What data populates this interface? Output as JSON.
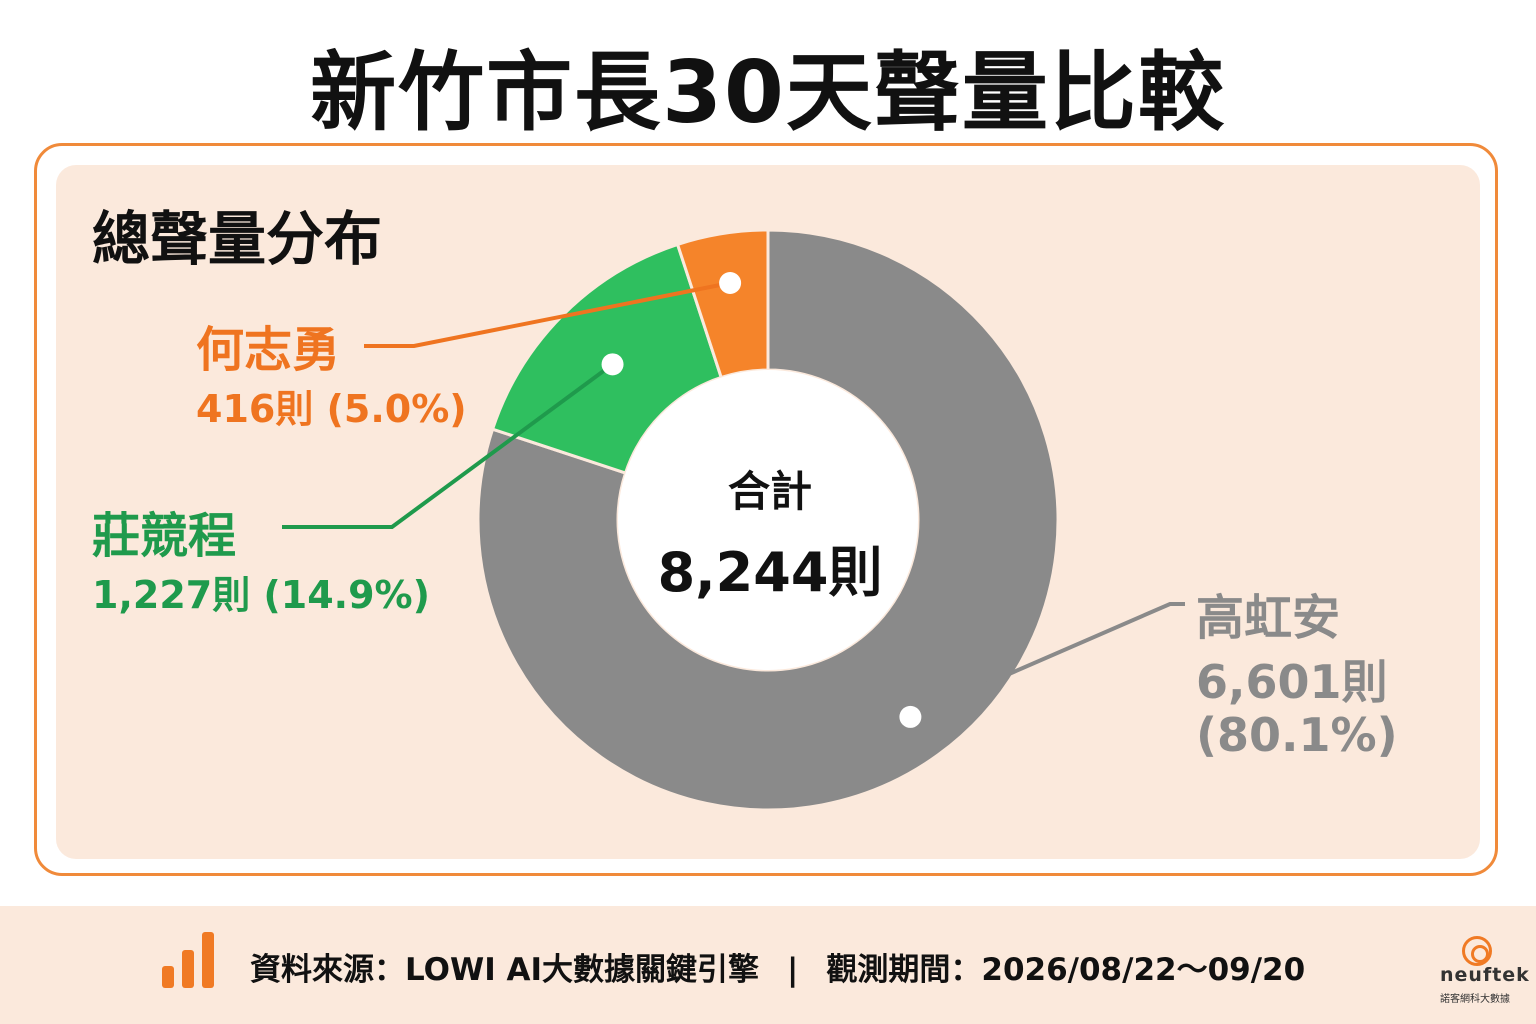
{
  "title": "新竹市長30天聲量比較",
  "section_title": "總聲量分布",
  "center": {
    "title": "合計",
    "total": "8,244則"
  },
  "chart_data": {
    "type": "pie",
    "donut": true,
    "total": 8244,
    "slices": [
      {
        "name": "高虹安",
        "count": 6601,
        "count_label": "6,601則",
        "percent": 80.1,
        "percent_label": "(80.1%)",
        "color": "#8a8a8a"
      },
      {
        "name": "莊競程",
        "count": 1227,
        "count_label": "1,227則 (14.9%)",
        "percent": 14.9,
        "color": "#2fbf5f"
      },
      {
        "name": "何志勇",
        "count": 416,
        "count_label": "416則 (5.0%)",
        "percent": 5.0,
        "color": "#f5842a"
      }
    ]
  },
  "footer": {
    "source": "資料來源：LOWI AI大數據關鍵引擎",
    "separator": "|",
    "period": "觀測期間：2026/08/22～09/20"
  },
  "logo": {
    "name": "neuftek",
    "subtitle": "諾客網科大數據"
  },
  "colors": {
    "accent": "#f08a3a",
    "panel_bg": "#fbe9dc",
    "gray_label": "#8a8a8a",
    "green_label": "#1f9a4c",
    "orange_label": "#ef7420"
  }
}
